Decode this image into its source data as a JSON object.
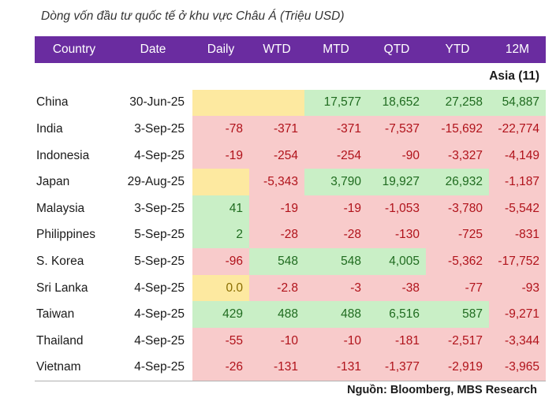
{
  "title": "Dòng vốn đầu tư quốc tế ở khu vực Châu Á (Triệu USD)",
  "source": "Nguồn: Bloomberg, MBS Research",
  "colors": {
    "header_bg": "#6a2ca0",
    "negative_bg": "#f8cbcb",
    "positive_bg": "#c9efc6",
    "zero_bg": "#fde9a0"
  },
  "chart_data": {
    "type": "table",
    "columns": [
      "Country",
      "Date",
      "Daily",
      "WTD",
      "MTD",
      "QTD",
      "YTD",
      "12M"
    ],
    "group_label": "Asia  (11)",
    "rows": [
      {
        "country": "China",
        "date": "30-Jun-25",
        "values": [
          "",
          "",
          "17,577",
          "18,652",
          "27,258",
          "54,887"
        ]
      },
      {
        "country": "India",
        "date": "3-Sep-25",
        "values": [
          "-78",
          "-371",
          "-371",
          "-7,537",
          "-15,692",
          "-22,774"
        ]
      },
      {
        "country": "Indonesia",
        "date": "4-Sep-25",
        "values": [
          "-19",
          "-254",
          "-254",
          "-90",
          "-3,327",
          "-4,149"
        ]
      },
      {
        "country": "Japan",
        "date": "29-Aug-25",
        "values": [
          "",
          "-5,343",
          "3,790",
          "19,927",
          "26,932",
          "-1,187"
        ]
      },
      {
        "country": "Malaysia",
        "date": "3-Sep-25",
        "values": [
          "41",
          "-19",
          "-19",
          "-1,053",
          "-3,780",
          "-5,542"
        ]
      },
      {
        "country": "Philippines",
        "date": "5-Sep-25",
        "values": [
          "2",
          "-28",
          "-28",
          "-130",
          "-725",
          "-831"
        ]
      },
      {
        "country": "S. Korea",
        "date": "5-Sep-25",
        "values": [
          "-96",
          "548",
          "548",
          "4,005",
          "-5,362",
          "-17,752"
        ]
      },
      {
        "country": "Sri Lanka",
        "date": "4-Sep-25",
        "values": [
          "0.0",
          "-2.8",
          "-3",
          "-38",
          "-77",
          "-93"
        ]
      },
      {
        "country": "Taiwan",
        "date": "4-Sep-25",
        "values": [
          "429",
          "488",
          "488",
          "6,516",
          "587",
          "-9,271"
        ]
      },
      {
        "country": "Thailand",
        "date": "4-Sep-25",
        "values": [
          "-55",
          "-10",
          "-10",
          "-181",
          "-2,517",
          "-3,344"
        ]
      },
      {
        "country": "Vietnam",
        "date": "4-Sep-25",
        "values": [
          "-26",
          "-131",
          "-131",
          "-1,377",
          "-2,919",
          "-3,965"
        ]
      }
    ]
  }
}
